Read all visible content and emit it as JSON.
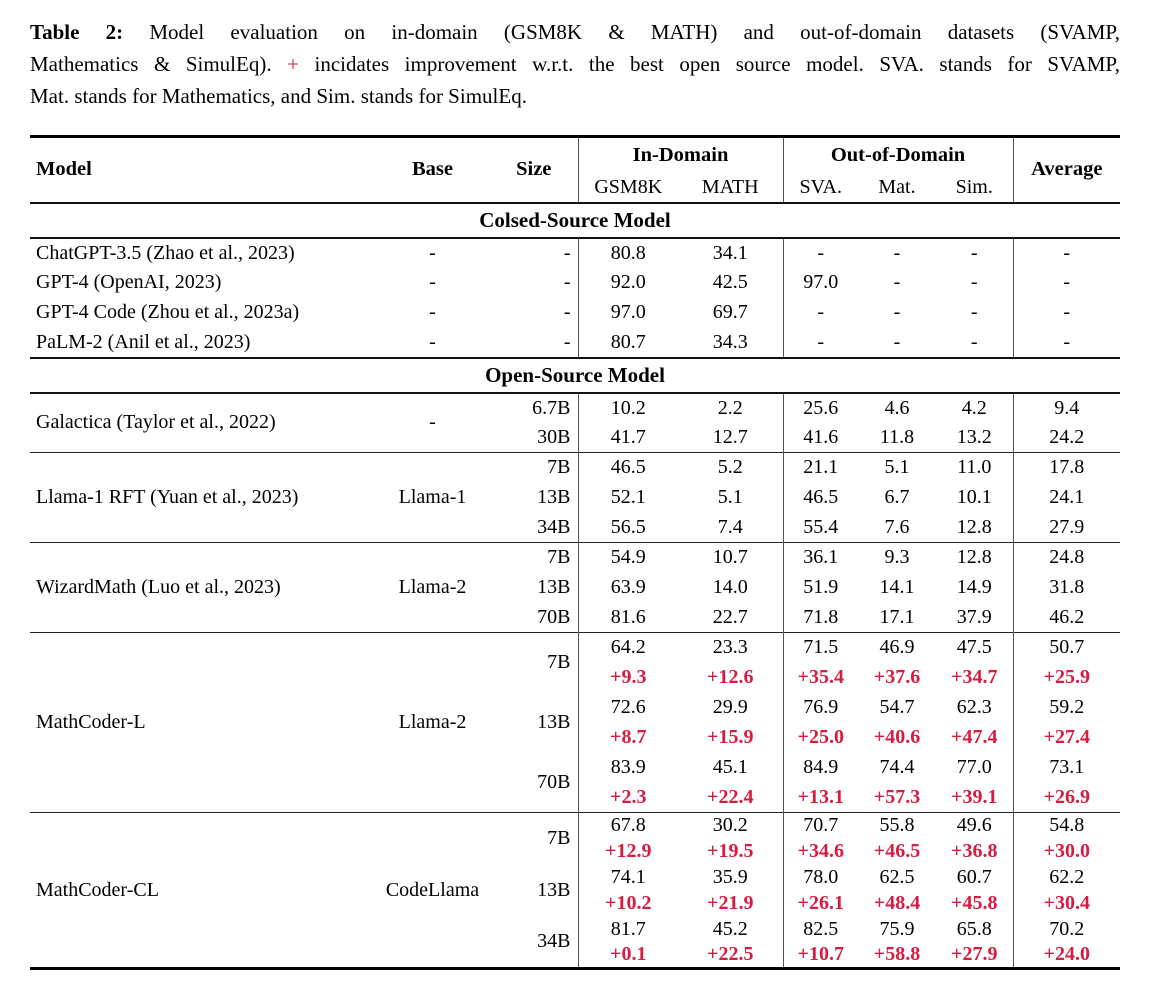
{
  "caption": {
    "line1_label": "Table 2:",
    "line1_rest": "Model evaluation on in-domain (GSM8K & MATH) and out-of-domain datasets (SVAMP,",
    "line2_pre": "Mathematics & SimulEq).",
    "line2_plus": "+",
    "line2_post": "incidates improvement w.r.t. the best open source model. SVA. stands for SVAMP,",
    "line3": "Mat. stands for Mathematics, and Sim. stands for SimulEq."
  },
  "colors": {
    "delta_red": "#d61c40",
    "rule_black": "#000000",
    "divider_gray": "#555555"
  },
  "table": {
    "headers": {
      "model": "Model",
      "base": "Base",
      "size": "Size",
      "group_in": "In-Domain",
      "group_out": "Out-of-Domain",
      "average": "Average",
      "sub": [
        "GSM8K",
        "MATH",
        "SVA.",
        "Mat.",
        "Sim."
      ]
    },
    "sections": [
      {
        "title": "Colsed-Source Model",
        "blocks": [
          [
            {
              "model": "ChatGPT-3.5 (Zhao et al., 2023)",
              "base": "-",
              "rows": [
                {
                  "size": "-",
                  "values": [
                    "80.8",
                    "34.1",
                    "-",
                    "-",
                    "-",
                    "-"
                  ]
                }
              ]
            },
            {
              "model": "GPT-4 (OpenAI, 2023)",
              "base": "-",
              "rows": [
                {
                  "size": "-",
                  "values": [
                    "92.0",
                    "42.5",
                    "97.0",
                    "-",
                    "-",
                    "-"
                  ]
                }
              ]
            },
            {
              "model": "GPT-4 Code (Zhou et al., 2023a)",
              "base": "-",
              "rows": [
                {
                  "size": "-",
                  "values": [
                    "97.0",
                    "69.7",
                    "-",
                    "-",
                    "-",
                    "-"
                  ]
                }
              ]
            },
            {
              "model": "PaLM-2 (Anil et al., 2023)",
              "base": "-",
              "rows": [
                {
                  "size": "-",
                  "values": [
                    "80.7",
                    "34.3",
                    "-",
                    "-",
                    "-",
                    "-"
                  ]
                }
              ]
            }
          ]
        ]
      },
      {
        "title": "Open-Source Model",
        "blocks": [
          [
            {
              "model": "Galactica (Taylor et al., 2022)",
              "base": "-",
              "rows": [
                {
                  "size": "6.7B",
                  "values": [
                    "10.2",
                    "2.2",
                    "25.6",
                    "4.6",
                    "4.2",
                    "9.4"
                  ]
                },
                {
                  "size": "30B",
                  "values": [
                    "41.7",
                    "12.7",
                    "41.6",
                    "11.8",
                    "13.2",
                    "24.2"
                  ]
                }
              ]
            }
          ],
          [
            {
              "model": "Llama-1 RFT (Yuan et al., 2023)",
              "base": "Llama-1",
              "rows": [
                {
                  "size": "7B",
                  "values": [
                    "46.5",
                    "5.2",
                    "21.1",
                    "5.1",
                    "11.0",
                    "17.8"
                  ]
                },
                {
                  "size": "13B",
                  "values": [
                    "52.1",
                    "5.1",
                    "46.5",
                    "6.7",
                    "10.1",
                    "24.1"
                  ]
                },
                {
                  "size": "34B",
                  "values": [
                    "56.5",
                    "7.4",
                    "55.4",
                    "7.6",
                    "12.8",
                    "27.9"
                  ]
                }
              ]
            }
          ],
          [
            {
              "model": "WizardMath (Luo et al., 2023)",
              "base": "Llama-2",
              "rows": [
                {
                  "size": "7B",
                  "values": [
                    "54.9",
                    "10.7",
                    "36.1",
                    "9.3",
                    "12.8",
                    "24.8"
                  ]
                },
                {
                  "size": "13B",
                  "values": [
                    "63.9",
                    "14.0",
                    "51.9",
                    "14.1",
                    "14.9",
                    "31.8"
                  ]
                },
                {
                  "size": "70B",
                  "values": [
                    "81.6",
                    "22.7",
                    "71.8",
                    "17.1",
                    "37.9",
                    "46.2"
                  ]
                }
              ]
            }
          ],
          [
            {
              "model": "MathCoder-L",
              "base": "Llama-2",
              "rows": [
                {
                  "size": "7B",
                  "values": [
                    "64.2",
                    "23.3",
                    "71.5",
                    "46.9",
                    "47.5",
                    "50.7"
                  ],
                  "delta": [
                    "+9.3",
                    "+12.6",
                    "+35.4",
                    "+37.6",
                    "+34.7",
                    "+25.9"
                  ]
                },
                {
                  "size": "13B",
                  "values": [
                    "72.6",
                    "29.9",
                    "76.9",
                    "54.7",
                    "62.3",
                    "59.2"
                  ],
                  "delta": [
                    "+8.7",
                    "+15.9",
                    "+25.0",
                    "+40.6",
                    "+47.4",
                    "+27.4"
                  ]
                },
                {
                  "size": "70B",
                  "values": [
                    "83.9",
                    "45.1",
                    "84.9",
                    "74.4",
                    "77.0",
                    "73.1"
                  ],
                  "delta": [
                    "+2.3",
                    "+22.4",
                    "+13.1",
                    "+57.3",
                    "+39.1",
                    "+26.9"
                  ]
                }
              ]
            }
          ],
          [
            {
              "model": "MathCoder-CL",
              "base": "CodeLlama",
              "rows": [
                {
                  "size": "7B",
                  "values": [
                    "67.8",
                    "30.2",
                    "70.7",
                    "55.8",
                    "49.6",
                    "54.8"
                  ],
                  "delta": [
                    "+12.9",
                    "+19.5",
                    "+34.6",
                    "+46.5",
                    "+36.8",
                    "+30.0"
                  ]
                },
                {
                  "size": "13B",
                  "values": [
                    "74.1",
                    "35.9",
                    "78.0",
                    "62.5",
                    "60.7",
                    "62.2"
                  ],
                  "delta": [
                    "+10.2",
                    "+21.9",
                    "+26.1",
                    "+48.4",
                    "+45.8",
                    "+30.4"
                  ]
                },
                {
                  "size": "34B",
                  "values": [
                    "81.7",
                    "45.2",
                    "82.5",
                    "75.9",
                    "65.8",
                    "70.2"
                  ],
                  "delta": [
                    "+0.1",
                    "+22.5",
                    "+10.7",
                    "+58.8",
                    "+27.9",
                    "+24.0"
                  ]
                }
              ]
            }
          ]
        ]
      }
    ]
  }
}
